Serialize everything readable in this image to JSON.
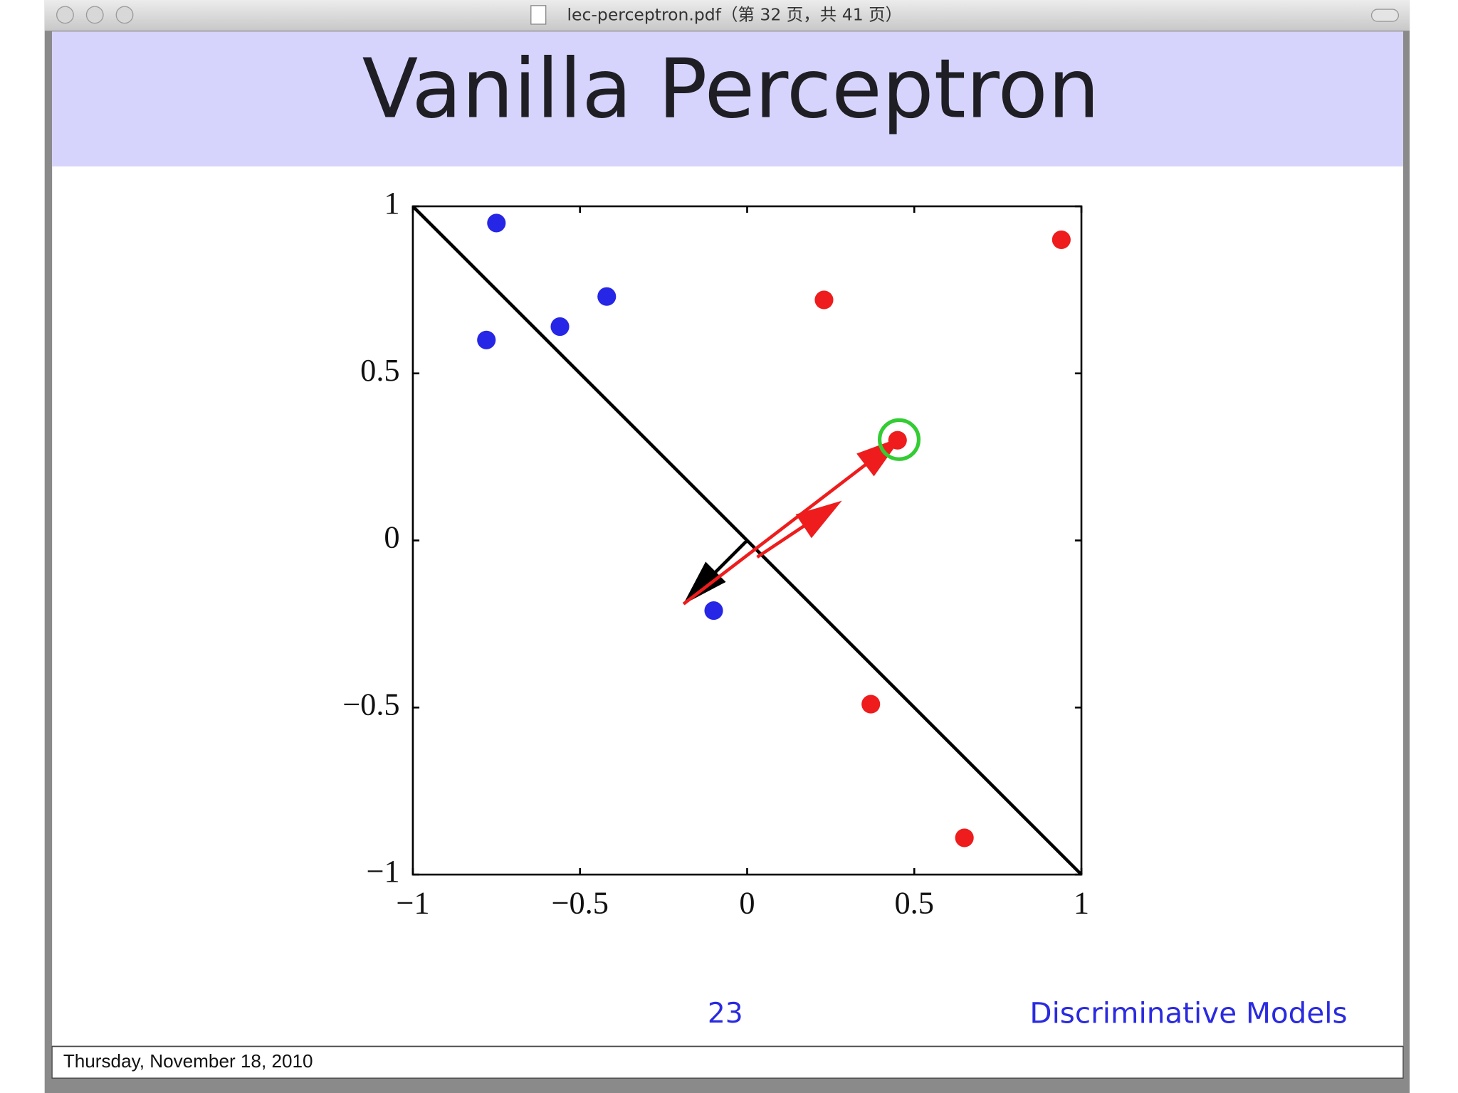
{
  "window": {
    "title": "lec-perceptron.pdf（第 32 页，共 41 页）"
  },
  "slide": {
    "title": "Vanilla Perceptron",
    "page_number": "23",
    "section": "Discriminative Models"
  },
  "chart_data": {
    "type": "scatter",
    "xlim": [
      -1,
      1
    ],
    "ylim": [
      -1,
      1
    ],
    "xticks": [
      {
        "value": -1,
        "label": "−1"
      },
      {
        "value": -0.5,
        "label": "−0.5"
      },
      0,
      0.5,
      1
    ],
    "yticks": [
      {
        "value": -1,
        "label": "−1"
      },
      {
        "value": -0.5,
        "label": "−0.5"
      },
      0,
      0.5,
      1
    ],
    "grid": false,
    "series": [
      {
        "color": "#2626e6",
        "x": [
          -0.75,
          -0.42,
          -0.56,
          -0.78,
          -0.1
        ],
        "values": [
          0.95,
          0.73,
          0.64,
          0.6,
          -0.21
        ]
      },
      {
        "color": "#ee1c1c",
        "x": [
          0.94,
          0.23,
          0.45,
          0.37,
          0.65
        ],
        "values": [
          0.9,
          0.72,
          0.3,
          -0.49,
          -0.89
        ]
      }
    ],
    "lines": [
      {
        "color": "#000000",
        "x": [
          -1,
          1
        ],
        "values": [
          1,
          -1
        ]
      }
    ],
    "arrows": [
      {
        "color": "#000000",
        "x": [
          0,
          -0.18
        ],
        "values": [
          0,
          -0.18
        ]
      },
      {
        "color": "#ee1c1c",
        "x": [
          -0.19,
          0.45
        ],
        "values": [
          -0.19,
          0.3
        ]
      },
      {
        "color": "#ee1c1c",
        "x": [
          0.03,
          0.27
        ],
        "values": [
          -0.05,
          0.11
        ]
      }
    ]
  },
  "footer": {
    "date": "Thursday, November 18, 2010"
  }
}
